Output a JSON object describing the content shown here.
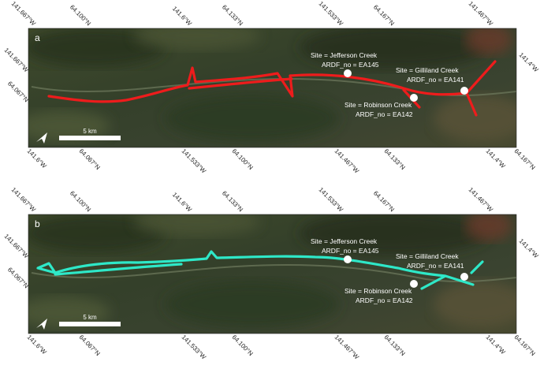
{
  "panels": [
    {
      "label": "a",
      "track_color": "#ee1c1c",
      "scale": "5 km",
      "sites": [
        {
          "name": "Site = Jefferson Creek",
          "id": "ARDF_no = EA145"
        },
        {
          "name": "Site = Gilliland Creek",
          "id": "ARDF_no = EA141"
        },
        {
          "name": "Site = Robinson Creek",
          "id": "ARDF_no = EA142"
        }
      ],
      "ticks": {
        "top": [
          "141.667°W",
          "64.100°N",
          "141.6°W",
          "64.133°N",
          "141.533°W",
          "64.167°N",
          "141.467°W"
        ],
        "left": [
          "141.667°W",
          "64.067°N"
        ],
        "right": [
          "141.4°W"
        ],
        "bottom": [
          "141.6°W",
          "64.067°N",
          "141.533°W",
          "64.100°N",
          "141.467°W",
          "64.133°N",
          "141.4°W",
          "64.167°N"
        ]
      }
    },
    {
      "label": "b",
      "track_color": "#2ee8c8",
      "scale": "5 km",
      "sites": [
        {
          "name": "Site = Jefferson Creek",
          "id": "ARDF_no = EA145"
        },
        {
          "name": "Site = Gilliland Creek",
          "id": "ARDF_no = EA141"
        },
        {
          "name": "Site = Robinson Creek",
          "id": "ARDF_no = EA142"
        }
      ],
      "ticks": {
        "top": [
          "141.667°W",
          "64.100°N",
          "141.6°W",
          "64.133°N",
          "141.533°W",
          "64.167°N",
          "141.467°W"
        ],
        "left": [
          "141.667°W",
          "64.067°N"
        ],
        "right": [
          "141.4°W"
        ],
        "bottom": [
          "141.6°W",
          "64.067°N",
          "141.533°W",
          "64.100°N",
          "141.467°W",
          "64.133°N",
          "141.4°W",
          "64.167°N"
        ]
      }
    }
  ]
}
